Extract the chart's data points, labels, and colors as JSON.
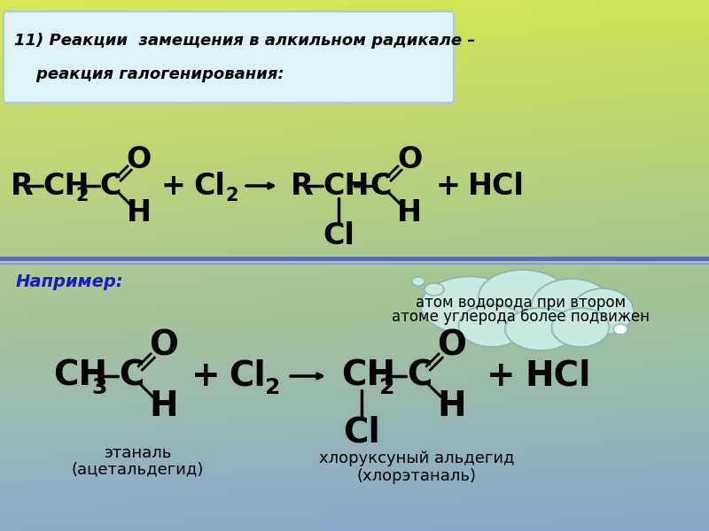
{
  "bg_colors": [
    "#d8e855",
    "#b8c870",
    "#a8b8d0",
    "#8aaccc"
  ],
  "title_box_color": "#dff2f8",
  "title_box_border": "#a8cce0",
  "title_line1": "11) Реакции  замещения в алкильном радикале –",
  "title_line2": "    реакция галогенирования:",
  "divider_color1": "#5566bb",
  "divider_color2": "#8899dd",
  "cloud_color": "#c8e8e0",
  "cloud_border": "#88b8b0",
  "cloud_text_line1": "атом водорода при втором",
  "cloud_text_line2": "атоме углерода более подвижен",
  "example_label": "Например:",
  "label1_line1": "этаналь",
  "label1_line2": "(ацетальдегид)",
  "label2_line1": "хлоруксуный альдегид",
  "label2_line2": "(хлорэтаналь)",
  "text_color": "#000000",
  "example_color": "#1a1acc"
}
